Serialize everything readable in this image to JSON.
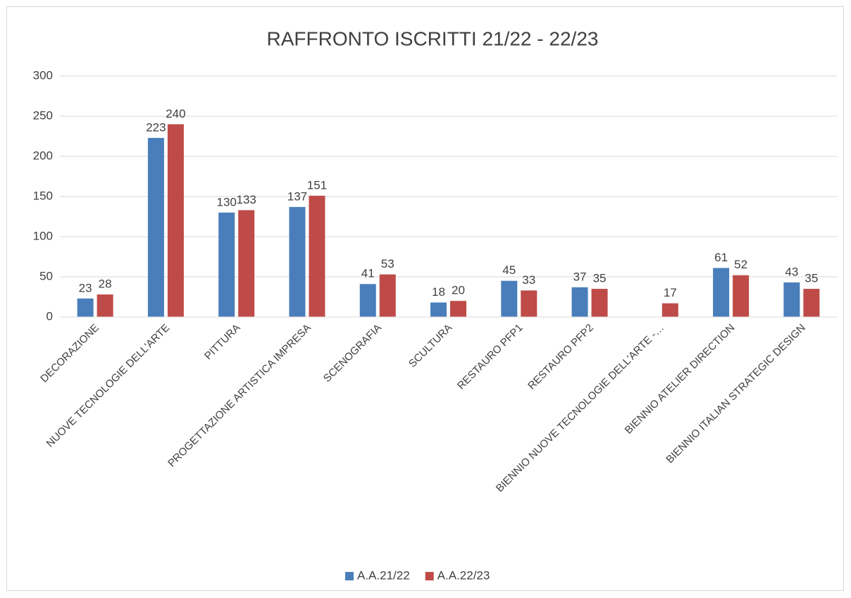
{
  "chart_data": {
    "type": "bar",
    "title": "RAFFRONTO ISCRITTI 21/22 - 22/23",
    "categories": [
      "DECORAZIONE",
      "NUOVE TECNOLOGIE DELL'ARTE",
      "PITTURA",
      "PROGETTAZIONE ARTISTICA IMPRESA",
      "SCENOGRAFIA",
      "SCULTURA",
      "RESTAURO PFP1",
      "RESTAURO PFP2",
      "BIENNIO NUOVE TECNOLOGIE DELL'ARTE -…",
      "BIENNIO ATELIER DIRECTION",
      "BIENNIO ITALIAN STRATEGIC DESIGN"
    ],
    "series": [
      {
        "name": "A.A.21/22",
        "color": "#4a7ebb",
        "values": [
          23,
          223,
          130,
          137,
          41,
          18,
          45,
          37,
          null,
          61,
          43
        ]
      },
      {
        "name": "A.A.22/23",
        "color": "#be4b48",
        "values": [
          28,
          240,
          133,
          151,
          53,
          20,
          33,
          35,
          17,
          52,
          35
        ]
      }
    ],
    "ylim": [
      0,
      300
    ],
    "yticks": [
      0,
      50,
      100,
      150,
      200,
      250,
      300
    ],
    "grid": true,
    "legend": "bottom"
  }
}
